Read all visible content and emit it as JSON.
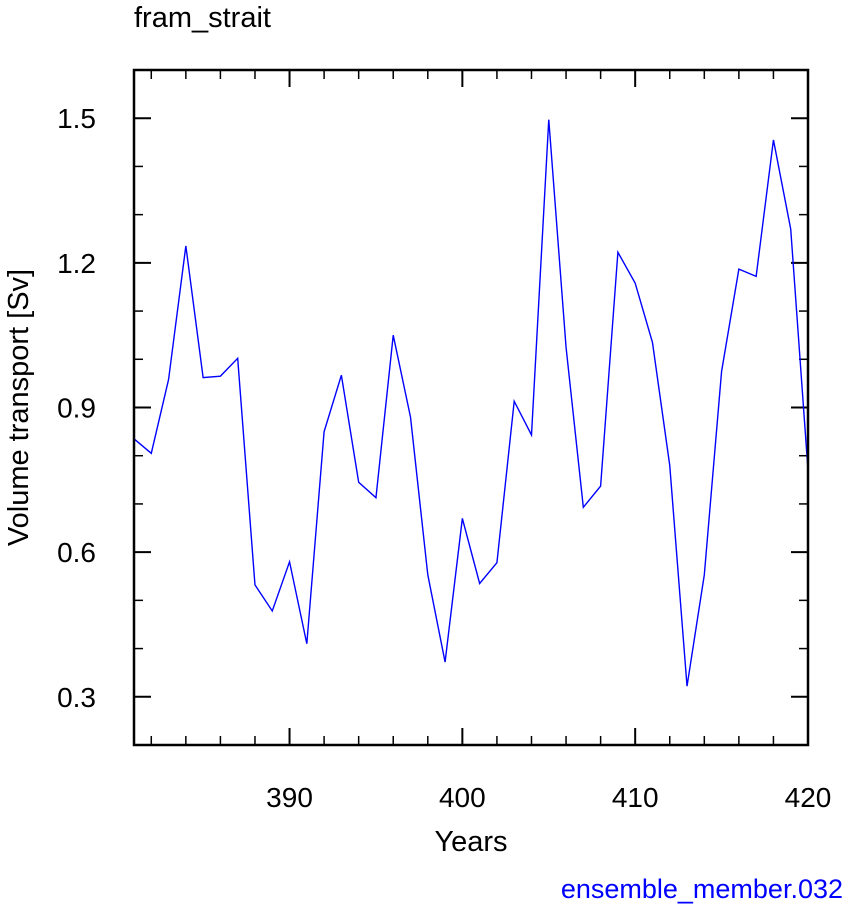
{
  "chart_data": {
    "type": "line",
    "title": "fram_strait",
    "xlabel": "Years",
    "ylabel": "Volume transport [Sv]",
    "footer": "ensemble_member.032",
    "xlim": [
      381,
      420
    ],
    "ylim": [
      0.2,
      1.6
    ],
    "xticks": [
      390,
      400,
      410,
      420
    ],
    "xtick_labels": [
      "390",
      "400",
      "410",
      "420"
    ],
    "xminor_step": 2,
    "yticks": [
      0.3,
      0.6,
      0.9,
      1.2,
      1.5
    ],
    "ytick_labels": [
      "0.3",
      "0.6",
      "0.9",
      "1.2",
      "1.5"
    ],
    "yminor_step": 0.1,
    "grid": false,
    "series": [
      {
        "color": "#0000ff",
        "x": [
          381,
          382,
          383,
          384,
          385,
          386,
          387,
          388,
          389,
          390,
          391,
          392,
          393,
          394,
          395,
          396,
          397,
          398,
          399,
          400,
          401,
          402,
          403,
          404,
          405,
          406,
          407,
          408,
          409,
          410,
          411,
          412,
          413,
          414,
          415,
          416,
          417,
          418,
          419,
          420
        ],
        "y": [
          0.835,
          0.805,
          0.958,
          1.235,
          0.962,
          0.965,
          1.002,
          0.532,
          0.478,
          0.58,
          0.41,
          0.85,
          0.967,
          0.745,
          0.713,
          1.05,
          0.88,
          0.553,
          0.372,
          0.67,
          0.535,
          0.578,
          0.913,
          0.843,
          1.497,
          1.025,
          0.693,
          0.737,
          1.222,
          1.158,
          1.035,
          0.78,
          0.322,
          0.553,
          0.975,
          1.187,
          1.172,
          1.455,
          1.27,
          0.77
        ]
      }
    ]
  }
}
